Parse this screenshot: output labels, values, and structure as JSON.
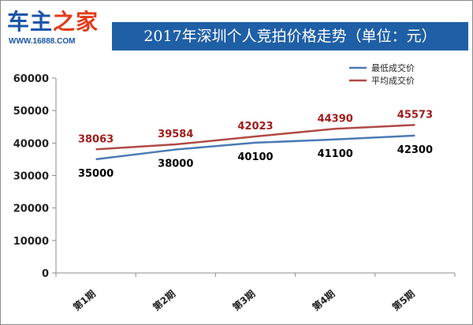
{
  "logo": {
    "part1": "车主",
    "part2": "之家",
    "url": "WWW.16888.COM",
    "color1": "#1a56a8",
    "color2": "#e23b1b"
  },
  "title": "2017年深圳个人竞拍价格走势（单位：元）",
  "chart_data": {
    "type": "line",
    "categories": [
      "第1期",
      "第2期",
      "第3期",
      "第4期",
      "第5期"
    ],
    "ylim": [
      0,
      60000
    ],
    "yticks": [
      0,
      10000,
      20000,
      30000,
      40000,
      50000,
      60000
    ],
    "grid": false,
    "legend_position": "top-right",
    "series": [
      {
        "name": "最低成交价",
        "values": [
          35000,
          38000,
          40100,
          41100,
          42300
        ],
        "color": "#4a7ab5",
        "label_color": "#000000"
      },
      {
        "name": "平均成交价",
        "values": [
          38063,
          39584,
          42023,
          44390,
          45573
        ],
        "color": "#b04a45",
        "label_color": "#a01b1b"
      }
    ]
  }
}
